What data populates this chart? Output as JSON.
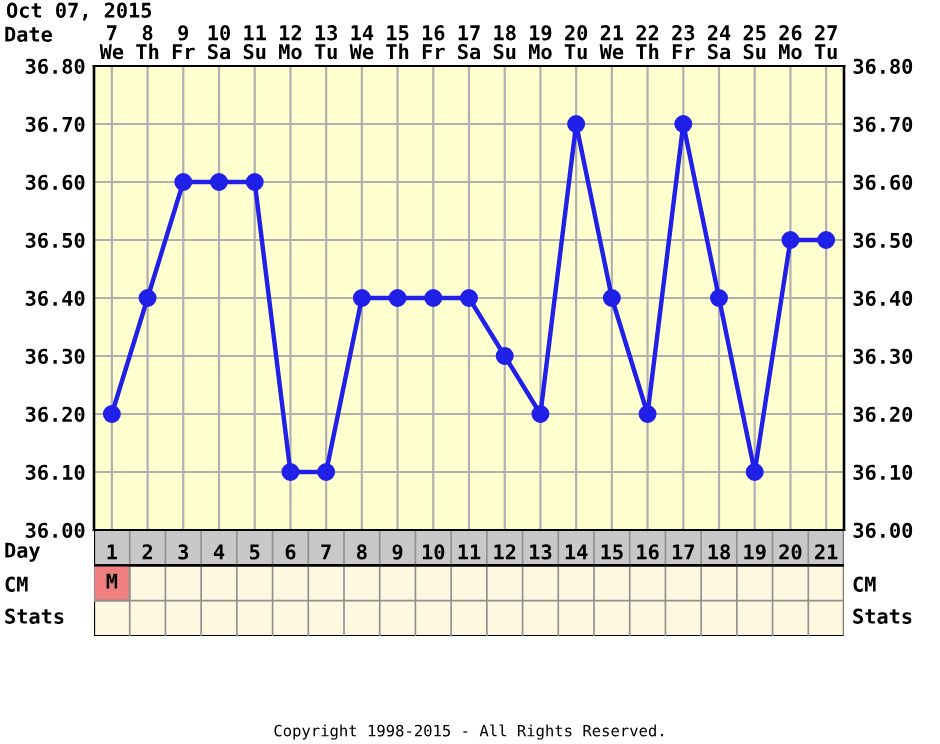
{
  "chart_data": {
    "type": "line",
    "title": "Oct 07, 2015",
    "xlabel": "Day",
    "x2label": "Date",
    "x": [
      1,
      2,
      3,
      4,
      5,
      6,
      7,
      8,
      9,
      10,
      11,
      12,
      13,
      14,
      15,
      16,
      17,
      18,
      19,
      20,
      21
    ],
    "series": [
      {
        "color": "#2020e8",
        "values": [
          36.2,
          36.4,
          36.6,
          36.6,
          36.6,
          36.1,
          36.1,
          36.4,
          36.4,
          36.4,
          36.4,
          36.3,
          36.2,
          36.7,
          36.4,
          36.2,
          36.7,
          36.4,
          36.1,
          36.5,
          36.5
        ]
      }
    ],
    "xlim": [
      0.5,
      21.5
    ],
    "xticks": [
      1,
      2,
      3,
      4,
      5,
      6,
      7,
      8,
      9,
      10,
      11,
      12,
      13,
      14,
      15,
      16,
      17,
      18,
      19,
      20,
      21
    ],
    "x2lim": [
      6.5,
      27.5
    ],
    "x2ticks": [
      {
        "value": 7,
        "label": "7\nWe"
      },
      {
        "value": 8,
        "label": "8\nTh"
      },
      {
        "value": 9,
        "label": "9\nFr"
      },
      {
        "value": 10,
        "label": "10\nSa"
      },
      {
        "value": 11,
        "label": "11\nSu"
      },
      {
        "value": 12,
        "label": "12\nMo"
      },
      {
        "value": 13,
        "label": "13\nTu"
      },
      {
        "value": 14,
        "label": "14\nWe"
      },
      {
        "value": 15,
        "label": "15\nTh"
      },
      {
        "value": 16,
        "label": "16\nFr"
      },
      {
        "value": 17,
        "label": "17\nSa"
      },
      {
        "value": 18,
        "label": "18\nSu"
      },
      {
        "value": 19,
        "label": "19\nMo"
      },
      {
        "value": 20,
        "label": "20\nTu"
      },
      {
        "value": 21,
        "label": "21\nWe"
      },
      {
        "value": 22,
        "label": "22\nTh"
      },
      {
        "value": 23,
        "label": "23\nFr"
      },
      {
        "value": 24,
        "label": "24\nSa"
      },
      {
        "value": 25,
        "label": "25\nSu"
      },
      {
        "value": 26,
        "label": "26\nMo"
      },
      {
        "value": 27,
        "label": "27\nTu"
      }
    ],
    "ylim": [
      36.0,
      36.8
    ],
    "yticks": [
      {
        "value": 36.0,
        "label": "36.00"
      },
      {
        "value": 36.1,
        "label": "36.10"
      },
      {
        "value": 36.2,
        "label": "36.20"
      },
      {
        "value": 36.3,
        "label": "36.30"
      },
      {
        "value": 36.4,
        "label": "36.40"
      },
      {
        "value": 36.5,
        "label": "36.50"
      },
      {
        "value": 36.6,
        "label": "36.60"
      },
      {
        "value": 36.7,
        "label": "36.70"
      },
      {
        "value": 36.8,
        "label": "36.80"
      }
    ],
    "y2lim": [
      36.0,
      36.8
    ],
    "y2ticks": [
      {
        "value": 36.0,
        "label": "36.00"
      },
      {
        "value": 36.1,
        "label": "36.10"
      },
      {
        "value": 36.2,
        "label": "36.20"
      },
      {
        "value": 36.3,
        "label": "36.30"
      },
      {
        "value": 36.4,
        "label": "36.40"
      },
      {
        "value": 36.5,
        "label": "36.50"
      },
      {
        "value": 36.6,
        "label": "36.60"
      },
      {
        "value": 36.7,
        "label": "36.70"
      },
      {
        "value": 36.8,
        "label": "36.80"
      }
    ],
    "grid": true,
    "marker": "circle",
    "line_style": "solid",
    "annotations": [
      "CM",
      "Stats",
      "M",
      "Copyright 1998-2015 - All Rights Reserved."
    ]
  }
}
